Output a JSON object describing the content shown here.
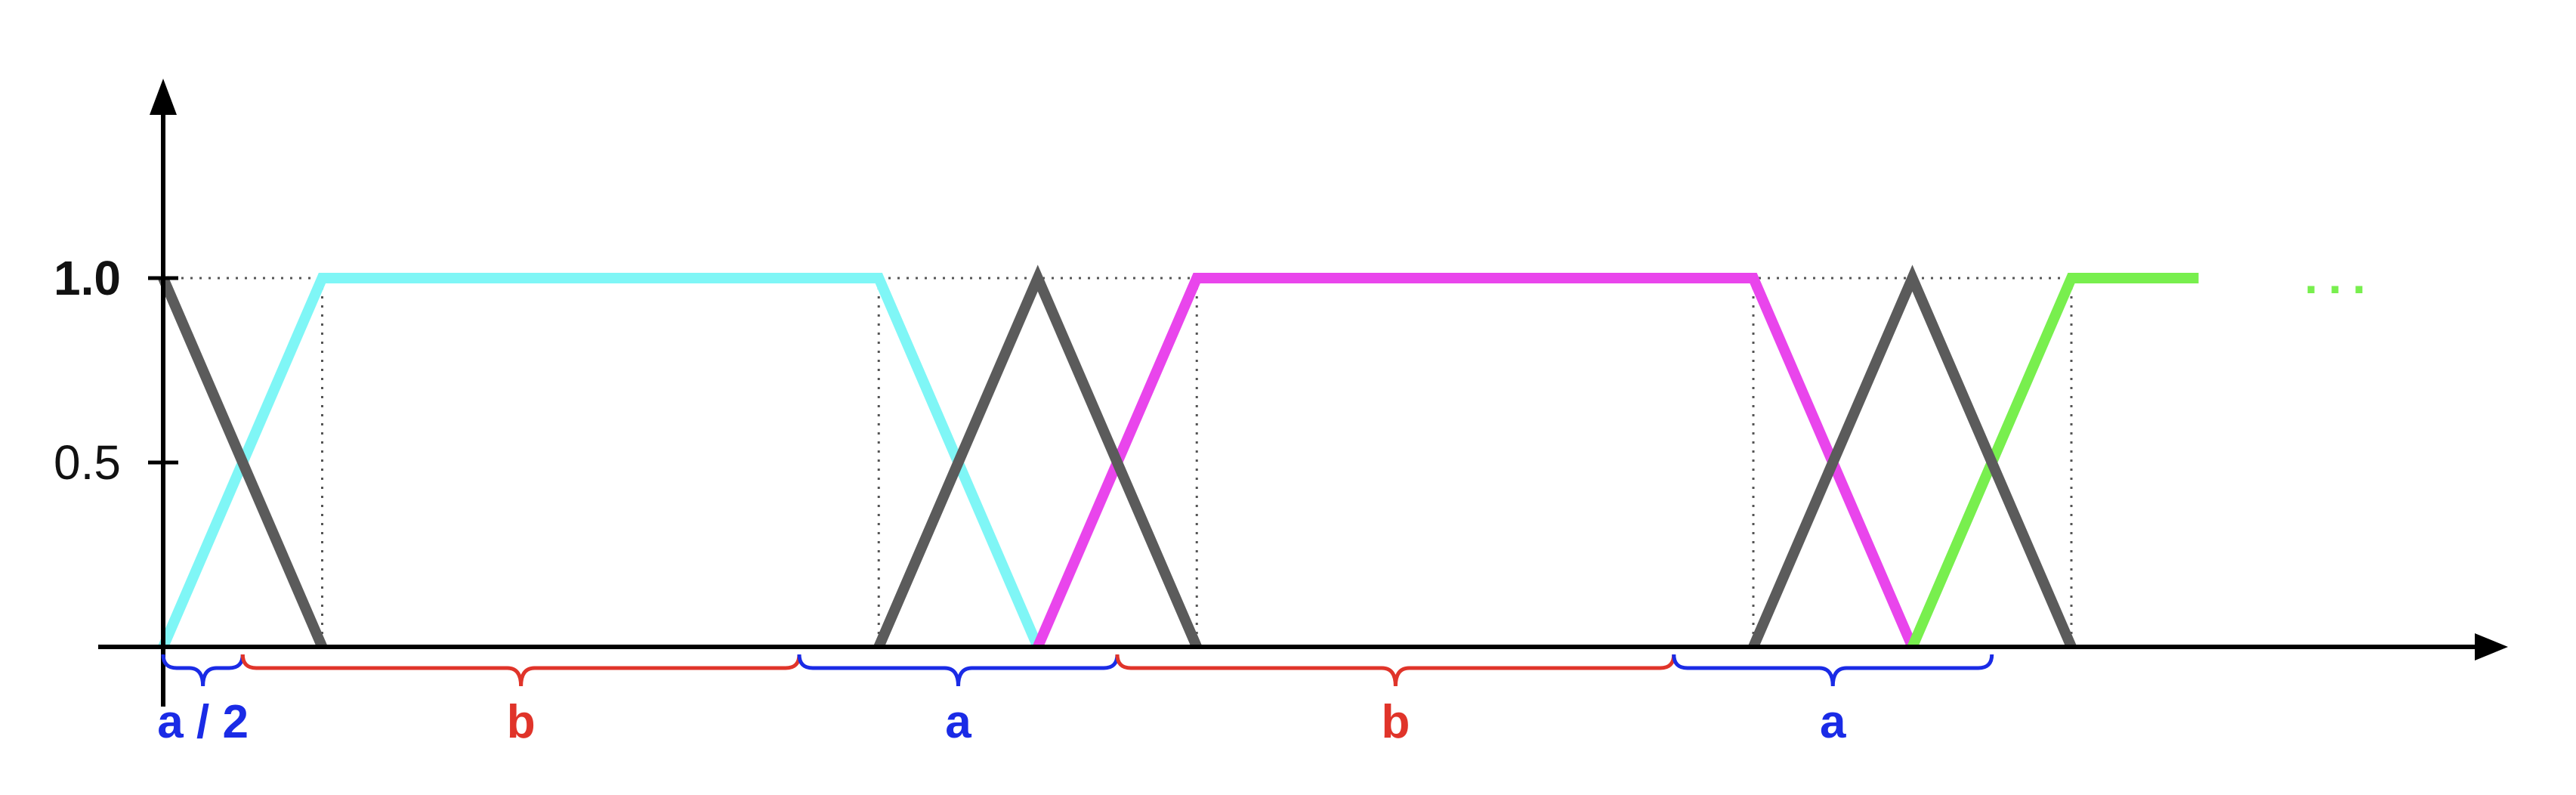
{
  "axes": {
    "y_ticks": [
      {
        "value": 1.0,
        "label": "1.0",
        "bold": true
      },
      {
        "value": 0.5,
        "label": "0.5",
        "bold": false
      }
    ],
    "y_range": [
      0,
      1.0
    ]
  },
  "segments": [
    {
      "label": "a / 2",
      "kind": "a",
      "from": 0,
      "to": 0.5
    },
    {
      "label": "b",
      "kind": "b",
      "from": 0.5,
      "to": 4.0
    },
    {
      "label": "a",
      "kind": "a",
      "from": 4.0,
      "to": 6.0
    },
    {
      "label": "b",
      "kind": "b",
      "from": 6.0,
      "to": 9.5
    },
    {
      "label": "a",
      "kind": "a",
      "from": 9.5,
      "to": 11.5
    }
  ],
  "curves": [
    {
      "name": "teal",
      "color": "#7ff6f6",
      "points": [
        [
          0,
          0
        ],
        [
          1,
          1
        ],
        [
          4.5,
          1
        ],
        [
          5.5,
          0
        ]
      ]
    },
    {
      "name": "magenta",
      "color": "#e945ec",
      "points": [
        [
          5.5,
          0
        ],
        [
          6.5,
          1
        ],
        [
          10,
          1
        ],
        [
          11,
          0
        ]
      ]
    },
    {
      "name": "green",
      "color": "#78ef4e",
      "points": [
        [
          11,
          0
        ],
        [
          12,
          1
        ],
        [
          12.8,
          1
        ]
      ]
    },
    {
      "name": "gray-1",
      "color": "#5b5b5b",
      "points": [
        [
          0,
          1
        ],
        [
          1,
          0
        ]
      ]
    },
    {
      "name": "gray-2",
      "color": "#5b5b5b",
      "points": [
        [
          4.5,
          0
        ],
        [
          5.5,
          1
        ],
        [
          6.5,
          0
        ]
      ]
    },
    {
      "name": "gray-3",
      "color": "#5b5b5b",
      "points": [
        [
          10,
          0
        ],
        [
          11,
          1
        ],
        [
          12,
          0
        ]
      ]
    }
  ],
  "guides": [
    1,
    4.5,
    6.5,
    10,
    12
  ],
  "continuation": {
    "text": "...",
    "color": "#78ef4e"
  },
  "colors": {
    "a": "#1a2be6",
    "b": "#e0342a",
    "axis": "#000000",
    "guide": "#555555"
  }
}
